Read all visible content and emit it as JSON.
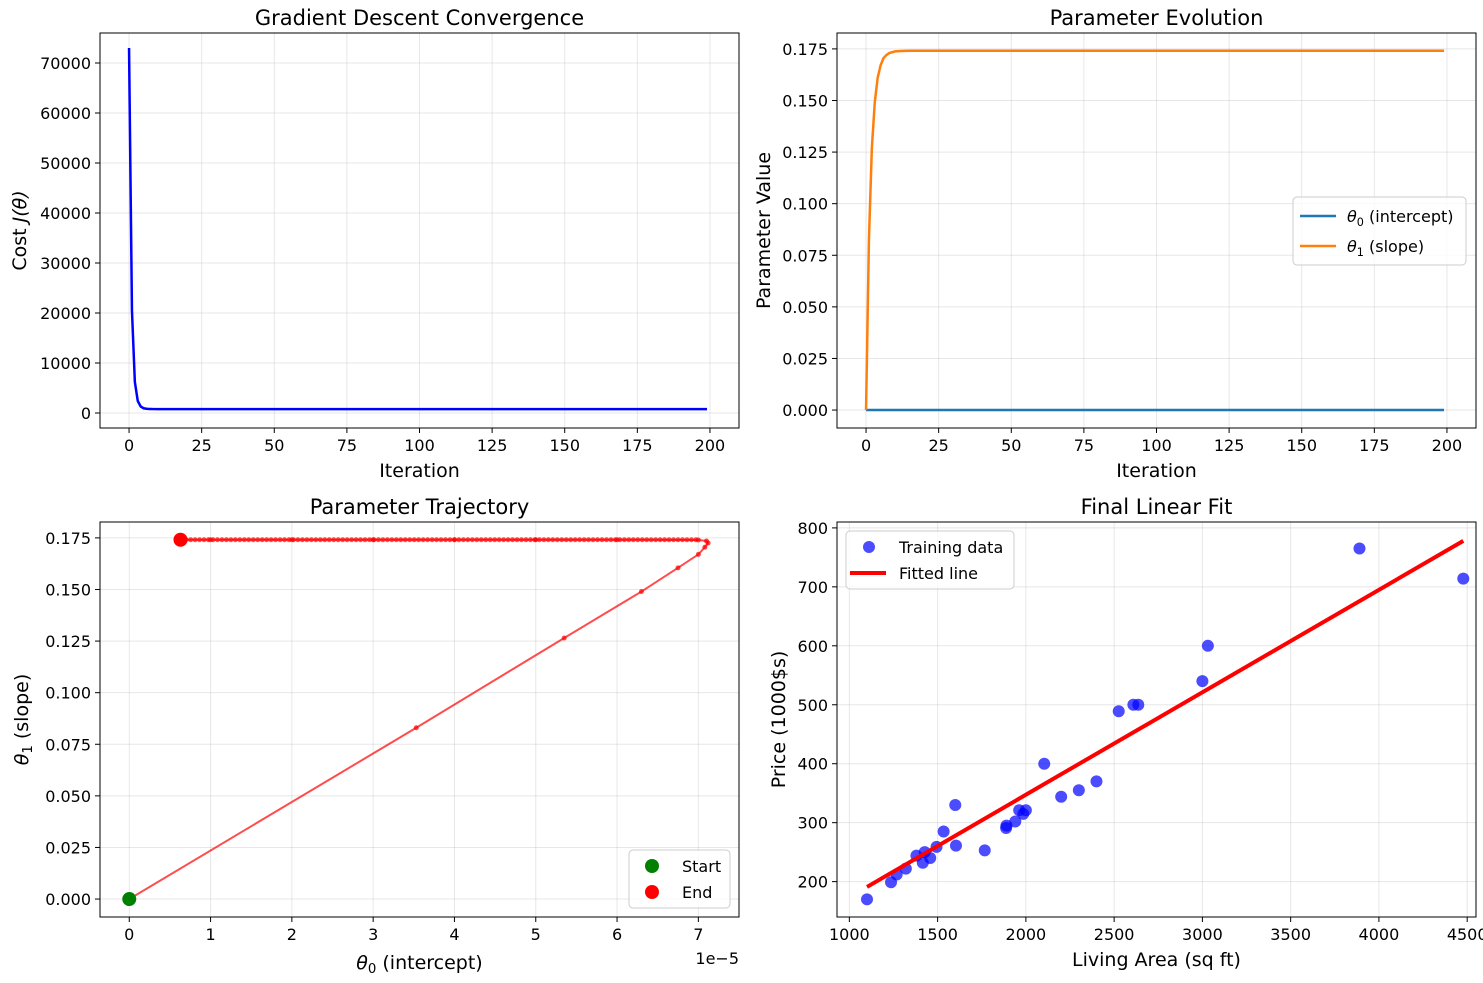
{
  "chart_data": [
    {
      "id": "cost",
      "type": "line",
      "title": "Gradient Descent Convergence",
      "xlabel": "Iteration",
      "ylabel_main": "Cost ",
      "ylabel_math": "J(θ)",
      "xlim": [
        -10,
        210
      ],
      "ylim": [
        -3000,
        76000
      ],
      "xticks": [
        0,
        25,
        50,
        75,
        100,
        125,
        150,
        175,
        200
      ],
      "yticks": [
        0,
        10000,
        20000,
        30000,
        40000,
        50000,
        60000,
        70000
      ],
      "grid": true,
      "colors": {
        "line": "#0000ff"
      },
      "series": [
        {
          "x": [
            0,
            1,
            2,
            3,
            4,
            5,
            6,
            7,
            8,
            10,
            15,
            20,
            50,
            100,
            150,
            199
          ],
          "y": [
            73000,
            20500,
            6200,
            2400,
            1300,
            950,
            850,
            810,
            790,
            780,
            775,
            775,
            775,
            775,
            775,
            775
          ]
        }
      ]
    },
    {
      "id": "params",
      "type": "line",
      "title": "Parameter Evolution",
      "xlabel": "Iteration",
      "ylabel": "Parameter Value",
      "xlim": [
        -10,
        210
      ],
      "ylim": [
        -0.0087,
        0.1827
      ],
      "xticks": [
        0,
        25,
        50,
        75,
        100,
        125,
        150,
        175,
        200
      ],
      "yticks": [
        "0.000",
        "0.025",
        "0.050",
        "0.075",
        "0.100",
        "0.125",
        "0.150",
        "0.175"
      ],
      "grid": true,
      "legend": "center-right",
      "series": [
        {
          "name_sym": "θ",
          "name_sub": "0",
          "name_rest": " (intercept)",
          "color": "#1f77b4",
          "x": [
            0,
            199
          ],
          "y": [
            0.0,
            0.0
          ]
        },
        {
          "name_sym": "θ",
          "name_sub": "1",
          "name_rest": " (slope)",
          "color": "#ff7f0e",
          "x": [
            0,
            1,
            2,
            3,
            4,
            5,
            6,
            7,
            8,
            10,
            12,
            15,
            20,
            50,
            100,
            150,
            199
          ],
          "y": [
            0.0,
            0.083,
            0.127,
            0.149,
            0.161,
            0.167,
            0.1705,
            0.172,
            0.173,
            0.1738,
            0.174,
            0.1741,
            0.1741,
            0.1741,
            0.1741,
            0.1741,
            0.1741
          ]
        }
      ]
    },
    {
      "id": "trajectory",
      "type": "line",
      "title": "Parameter Trajectory",
      "xlabel_sym": "θ",
      "xlabel_sub": "0",
      "xlabel_rest": " (intercept)",
      "ylabel_sym": "θ",
      "ylabel_sub": "1",
      "ylabel_rest": " (slope)",
      "x_multiplier": "1e−5",
      "xlim": [
        -0.36,
        7.5
      ],
      "ylim": [
        -0.0087,
        0.1827
      ],
      "xticks": [
        0,
        1,
        2,
        3,
        4,
        5,
        6,
        7
      ],
      "yticks": [
        "0.000",
        "0.025",
        "0.050",
        "0.075",
        "0.100",
        "0.125",
        "0.150",
        "0.175"
      ],
      "grid": true,
      "legend": "lower-right",
      "path": {
        "color": "#ff0000",
        "points": [
          [
            0,
            0
          ],
          [
            3.53,
            0.083
          ],
          [
            5.35,
            0.1265
          ],
          [
            6.3,
            0.149
          ],
          [
            6.75,
            0.1605
          ],
          [
            7.0,
            0.167
          ],
          [
            7.08,
            0.1705
          ],
          [
            7.12,
            0.1725
          ],
          [
            7.1,
            0.1735
          ],
          [
            7.0,
            0.174
          ],
          [
            6.0,
            0.1741
          ],
          [
            5.0,
            0.1741
          ],
          [
            4.0,
            0.1741
          ],
          [
            3.0,
            0.1741
          ],
          [
            2.0,
            0.1741
          ],
          [
            1.0,
            0.1741
          ],
          [
            0.63,
            0.1741
          ]
        ]
      },
      "start": {
        "label": "Start",
        "x": 0,
        "y": 0,
        "color": "#008000"
      },
      "end": {
        "label": "End",
        "x": 0.63,
        "y": 0.1741,
        "color": "#ff0000"
      }
    },
    {
      "id": "fit",
      "type": "scatter",
      "title": "Final Linear Fit",
      "xlabel": "Living Area (sq ft)",
      "ylabel": "Price (1000$s)",
      "xlim": [
        930,
        4550
      ],
      "ylim": [
        140,
        810
      ],
      "xticks": [
        1000,
        1500,
        2000,
        2500,
        3000,
        3500,
        4000,
        4500
      ],
      "yticks": [
        200,
        300,
        400,
        500,
        600,
        700,
        800
      ],
      "grid": true,
      "legend": "upper-left",
      "scatter": {
        "name": "Training data",
        "color": "#0000ff",
        "points": [
          [
            1100,
            170
          ],
          [
            1236,
            199
          ],
          [
            1268,
            212
          ],
          [
            1320,
            222
          ],
          [
            1380,
            244
          ],
          [
            1416,
            232
          ],
          [
            1427,
            250
          ],
          [
            1458,
            240
          ],
          [
            1494,
            259
          ],
          [
            1534,
            285
          ],
          [
            1600,
            330
          ],
          [
            1604,
            261
          ],
          [
            1767,
            253
          ],
          [
            1888,
            291
          ],
          [
            1890,
            295
          ],
          [
            1940,
            302
          ],
          [
            1962,
            321
          ],
          [
            1985,
            315
          ],
          [
            2000,
            321
          ],
          [
            2104,
            400
          ],
          [
            2200,
            344
          ],
          [
            2300,
            355
          ],
          [
            2400,
            370
          ],
          [
            2526,
            489
          ],
          [
            2609,
            500
          ],
          [
            2637,
            500
          ],
          [
            3000,
            540
          ],
          [
            3031,
            600
          ],
          [
            3890,
            765
          ],
          [
            4478,
            714
          ]
        ]
      },
      "line": {
        "name": "Fitted line",
        "color": "#ff0000",
        "x": [
          1100,
          4478
        ],
        "y": [
          191,
          778
        ]
      }
    }
  ]
}
